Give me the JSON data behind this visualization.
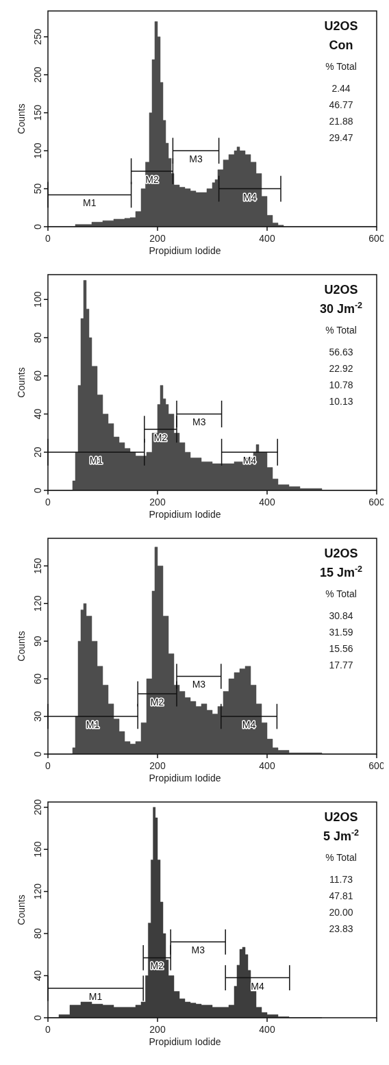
{
  "chart_data": [
    {
      "type": "area",
      "title": "U2OS",
      "subtitle": "Con",
      "xlabel": "Propidium Iodide",
      "ylabel": "Counts",
      "xlim": [
        0,
        600
      ],
      "xticks": [
        0,
        200,
        400,
        600
      ],
      "ylim": [
        0,
        284
      ],
      "yticks": [
        0,
        50,
        100,
        150,
        200,
        250
      ],
      "annotations": [
        "% Total",
        "2.44",
        "46.77",
        "21.88",
        "29.47"
      ],
      "series": [
        {
          "color": "#4d4d4d",
          "x": [
            0,
            40,
            50,
            80,
            100,
            120,
            140,
            150,
            160,
            170,
            178,
            185,
            190,
            195,
            200,
            205,
            210,
            215,
            220,
            225,
            230,
            240,
            250,
            260,
            270,
            280,
            290,
            300,
            305,
            310,
            320,
            330,
            340,
            345,
            350,
            360,
            370,
            380,
            390,
            400,
            410,
            420,
            430,
            600
          ],
          "values": [
            0,
            0,
            3,
            6,
            8,
            10,
            11,
            12,
            20,
            50,
            85,
            150,
            220,
            270,
            250,
            190,
            140,
            110,
            90,
            70,
            55,
            52,
            50,
            47,
            45,
            45,
            50,
            58,
            62,
            75,
            88,
            95,
            100,
            105,
            100,
            95,
            85,
            70,
            40,
            15,
            5,
            2,
            0,
            0
          ]
        },
        {
          "type": "line",
          "name": "M1",
          "color": "#111111",
          "x": [
            0,
            152
          ],
          "values": [
            42,
            42
          ],
          "errors": [
            17,
            17
          ]
        },
        {
          "type": "line",
          "name": "M2",
          "color": "#111111",
          "x": [
            152,
            228
          ],
          "values": [
            73,
            73
          ],
          "errors": [
            17,
            17
          ]
        },
        {
          "type": "line",
          "name": "M3",
          "color": "#111111",
          "x": [
            228,
            312
          ],
          "values": [
            100,
            100
          ],
          "errors": [
            17,
            17
          ]
        },
        {
          "type": "line",
          "name": "M4",
          "color": "#111111",
          "x": [
            312,
            425
          ],
          "values": [
            50,
            50
          ],
          "errors": [
            17,
            17
          ]
        }
      ]
    },
    {
      "type": "area",
      "title": "U2OS",
      "subtitle": "30 Jm$^{-2}$",
      "xlabel": "Propidium Iodide",
      "ylabel": "Counts",
      "xlim": [
        0,
        600
      ],
      "xticks": [
        0,
        200,
        400,
        600
      ],
      "ylim": [
        0,
        113
      ],
      "yticks": [
        0,
        20,
        40,
        60,
        80,
        100
      ],
      "annotations": [
        "% Total",
        "56.63",
        "22.92",
        "10.78",
        "10.13"
      ],
      "series": [
        {
          "color": "#4d4d4d",
          "x": [
            0,
            40,
            45,
            50,
            55,
            60,
            65,
            70,
            75,
            80,
            90,
            100,
            110,
            120,
            130,
            140,
            150,
            160,
            170,
            180,
            190,
            200,
            205,
            210,
            215,
            220,
            230,
            240,
            250,
            260,
            280,
            300,
            320,
            340,
            360,
            375,
            380,
            385,
            400,
            410,
            420,
            440,
            460,
            480,
            500,
            600
          ],
          "values": [
            0,
            0,
            5,
            20,
            55,
            90,
            110,
            95,
            80,
            65,
            50,
            40,
            35,
            28,
            25,
            22,
            20,
            18,
            18,
            20,
            30,
            45,
            55,
            48,
            45,
            40,
            30,
            25,
            20,
            17,
            15,
            14,
            14,
            15,
            17,
            20,
            24,
            20,
            12,
            6,
            3,
            2,
            1,
            1,
            0,
            0
          ]
        },
        {
          "type": "line",
          "name": "M1",
          "color": "#111111",
          "x": [
            0,
            176
          ],
          "values": [
            20,
            20
          ],
          "errors": [
            7,
            7
          ]
        },
        {
          "type": "line",
          "name": "M2",
          "color": "#111111",
          "x": [
            176,
            235
          ],
          "values": [
            32,
            32
          ],
          "errors": [
            7,
            7
          ]
        },
        {
          "type": "line",
          "name": "M3",
          "color": "#111111",
          "x": [
            235,
            317
          ],
          "values": [
            40,
            40
          ],
          "errors": [
            7,
            7
          ]
        },
        {
          "type": "line",
          "name": "M4",
          "color": "#111111",
          "x": [
            317,
            419
          ],
          "values": [
            20,
            20
          ],
          "errors": [
            7,
            7
          ]
        }
      ]
    },
    {
      "type": "area",
      "title": "U2OS",
      "subtitle": "15 Jm$^{-2}$",
      "xlabel": "Propidium Iodide",
      "ylabel": "Counts",
      "xlim": [
        0,
        600
      ],
      "xticks": [
        0,
        200,
        400,
        600
      ],
      "ylim": [
        0,
        172
      ],
      "yticks": [
        0,
        30,
        60,
        90,
        120,
        150
      ],
      "annotations": [
        "% Total",
        "30.84",
        "31.59",
        "15.56",
        "17.77"
      ],
      "series": [
        {
          "color": "#4d4d4d",
          "x": [
            0,
            40,
            45,
            50,
            55,
            60,
            65,
            70,
            80,
            90,
            100,
            110,
            120,
            130,
            140,
            150,
            160,
            170,
            180,
            190,
            195,
            200,
            210,
            220,
            230,
            240,
            250,
            260,
            270,
            280,
            290,
            300,
            310,
            320,
            330,
            340,
            350,
            360,
            370,
            380,
            390,
            400,
            410,
            420,
            440,
            460,
            500,
            600
          ],
          "values": [
            0,
            0,
            5,
            30,
            90,
            115,
            120,
            110,
            90,
            70,
            55,
            40,
            28,
            18,
            10,
            8,
            10,
            25,
            60,
            130,
            165,
            150,
            110,
            80,
            55,
            50,
            45,
            42,
            38,
            40,
            35,
            32,
            38,
            50,
            60,
            65,
            68,
            70,
            55,
            40,
            25,
            12,
            5,
            3,
            1,
            1,
            0,
            0
          ]
        },
        {
          "type": "line",
          "name": "M1",
          "color": "#111111",
          "x": [
            0,
            164
          ],
          "values": [
            30,
            30
          ],
          "errors": [
            10,
            10
          ]
        },
        {
          "type": "line",
          "name": "M2",
          "color": "#111111",
          "x": [
            164,
            235
          ],
          "values": [
            48,
            48
          ],
          "errors": [
            10,
            10
          ]
        },
        {
          "type": "line",
          "name": "M3",
          "color": "#111111",
          "x": [
            235,
            316
          ],
          "values": [
            62,
            62
          ],
          "errors": [
            10,
            10
          ]
        },
        {
          "type": "line",
          "name": "M4",
          "color": "#111111",
          "x": [
            316,
            418
          ],
          "values": [
            30,
            30
          ],
          "errors": [
            10,
            10
          ]
        }
      ]
    },
    {
      "type": "area",
      "title": "U2OS",
      "subtitle": "5 Jm$^{-2}$",
      "xlabel": "Propidium Iodide",
      "ylabel": "Counts",
      "xlim": [
        0,
        600
      ],
      "xticks": [
        0,
        200,
        400,
        {
          "value": 600,
          "label": null
        }
      ],
      "ylim": [
        0,
        205
      ],
      "yticks": [
        0,
        40,
        80,
        120,
        160,
        200
      ],
      "annotations": [
        "% Total",
        "11.73",
        "47.81",
        "20.00",
        "23.83"
      ],
      "series": [
        {
          "color": "#3d3d3d",
          "x": [
            0,
            20,
            40,
            60,
            80,
            100,
            120,
            140,
            160,
            170,
            178,
            183,
            188,
            192,
            196,
            200,
            205,
            210,
            215,
            220,
            230,
            240,
            250,
            260,
            270,
            280,
            290,
            300,
            310,
            320,
            330,
            340,
            345,
            350,
            355,
            360,
            365,
            370,
            380,
            390,
            400,
            420,
            440,
            500
          ],
          "values": [
            0,
            3,
            12,
            15,
            13,
            12,
            10,
            10,
            12,
            15,
            40,
            90,
            150,
            200,
            190,
            150,
            110,
            80,
            55,
            40,
            25,
            18,
            15,
            14,
            13,
            12,
            12,
            10,
            10,
            10,
            12,
            30,
            50,
            65,
            67,
            60,
            45,
            25,
            10,
            5,
            3,
            1,
            0,
            0
          ]
        },
        {
          "type": "line",
          "name": "M1",
          "color": "#111111",
          "x": [
            0,
            174
          ],
          "values": [
            28,
            28
          ],
          "errors": [
            12,
            12
          ]
        },
        {
          "type": "line",
          "name": "M2",
          "color": "#111111",
          "x": [
            174,
            224
          ],
          "values": [
            57,
            57
          ],
          "errors": [
            12,
            12
          ]
        },
        {
          "type": "line",
          "name": "M3",
          "color": "#111111",
          "x": [
            224,
            324
          ],
          "values": [
            72,
            72
          ],
          "errors": [
            12,
            12
          ]
        },
        {
          "type": "line",
          "name": "M4",
          "color": "#111111",
          "x": [
            324,
            441
          ],
          "values": [
            38,
            38
          ],
          "errors": [
            12,
            12
          ]
        }
      ]
    }
  ]
}
